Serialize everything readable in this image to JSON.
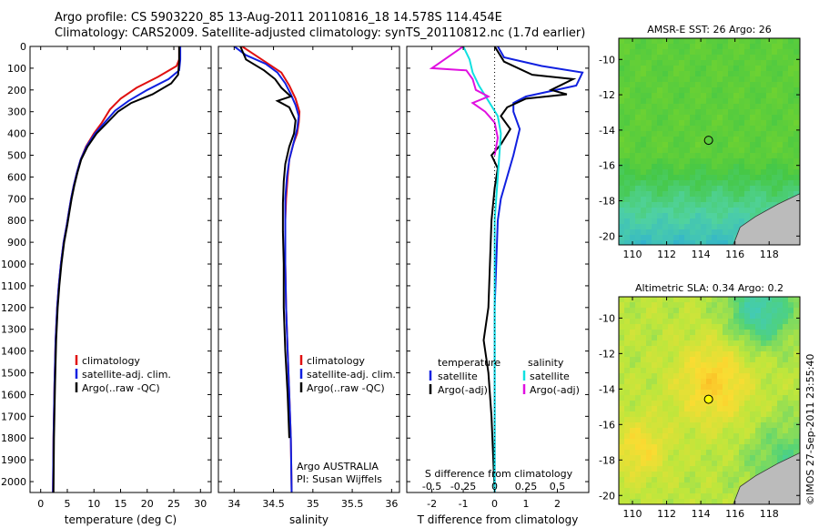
{
  "header": {
    "line1": "Argo profile: CS 5903220_85 13-Aug-2011 20110816_18 14.578S 114.454E",
    "line2": "Climatology: CARS2009. Satellite-adjusted climatology: synTS_20110812.nc (1.7d earlier)"
  },
  "stamp": "©IMOS 27-Sep-2011 23:55:40",
  "colors": {
    "climatology": "#e01010",
    "satellite": "#1020e0",
    "argo": "#000000",
    "sal_satellite": "#10e0e0",
    "sal_argo": "#e010e0"
  },
  "depth_axis": {
    "ylim": [
      0,
      2050
    ],
    "ticks": [
      0,
      100,
      200,
      300,
      400,
      500,
      600,
      700,
      800,
      900,
      1000,
      1100,
      1200,
      1300,
      1400,
      1500,
      1600,
      1700,
      1800,
      1900,
      2000
    ]
  },
  "chart_data": [
    {
      "type": "line",
      "id": "temperature",
      "xlabel": "temperature (deg C)",
      "xlim": [
        -2,
        32
      ],
      "xticks": [
        0,
        5,
        10,
        15,
        20,
        25,
        30
      ],
      "legend": [
        "climatology",
        "satellite-adj. clim.",
        "Argo(..raw -QC)"
      ],
      "series": [
        {
          "name": "climatology",
          "key": "climatology",
          "x": [
            26.0,
            26.0,
            25.5,
            22,
            18,
            15,
            13,
            11.5,
            10,
            8.5,
            7.5,
            6.8,
            6.2,
            5.7,
            5.3,
            4.9,
            4.3,
            3.8,
            3.4,
            3.1,
            2.8,
            2.6,
            2.4,
            2.3
          ],
          "y": [
            0,
            60,
            90,
            140,
            190,
            240,
            290,
            350,
            400,
            460,
            520,
            580,
            640,
            700,
            760,
            820,
            900,
            1000,
            1100,
            1200,
            1350,
            1550,
            1800,
            2050
          ]
        },
        {
          "name": "satellite-adj. clim.",
          "key": "satellite",
          "x": [
            26.2,
            26.2,
            26,
            24,
            20,
            16.5,
            14,
            12,
            10.2,
            8.6,
            7.5,
            6.8,
            6.2,
            5.7,
            5.3,
            4.9,
            4.3,
            3.8,
            3.4,
            3.1,
            2.8,
            2.6,
            2.4,
            2.3
          ],
          "y": [
            0,
            60,
            110,
            150,
            200,
            250,
            295,
            350,
            400,
            460,
            520,
            580,
            640,
            700,
            760,
            820,
            900,
            1000,
            1100,
            1200,
            1350,
            1550,
            1800,
            2050
          ]
        },
        {
          "name": "Argo(..raw -QC)",
          "key": "argo",
          "x": [
            26.0,
            26.0,
            25.8,
            24.5,
            21,
            17,
            14.5,
            12.5,
            10.5,
            8.8,
            7.6,
            6.9,
            6.3,
            5.8,
            5.4,
            5.0,
            4.4,
            3.9,
            3.5,
            3.2,
            2.9,
            2.7,
            2.5,
            2.4
          ],
          "y": [
            0,
            70,
            130,
            170,
            220,
            260,
            300,
            350,
            400,
            460,
            520,
            580,
            640,
            700,
            760,
            820,
            900,
            1000,
            1100,
            1200,
            1350,
            1550,
            1800,
            2050
          ]
        }
      ]
    },
    {
      "type": "line",
      "id": "salinity",
      "xlabel": "salinity",
      "xlim": [
        33.8,
        36.1
      ],
      "xticks": [
        34,
        34.5,
        35,
        35.5,
        36
      ],
      "legend": [
        "climatology",
        "satellite-adj. clim.",
        "Argo(..raw -QC)"
      ],
      "annotation": [
        "Argo AUSTRALIA",
        "PI: Susan Wijffels"
      ],
      "series": [
        {
          "name": "climatology",
          "key": "climatology",
          "x": [
            34.1,
            34.35,
            34.6,
            34.7,
            34.78,
            34.83,
            34.82,
            34.8,
            34.75,
            34.7,
            34.68,
            34.66,
            34.65,
            34.65,
            34.66,
            34.68,
            34.7,
            34.72,
            34.73
          ],
          "y": [
            0,
            60,
            120,
            180,
            240,
            300,
            350,
            400,
            450,
            520,
            600,
            700,
            800,
            1000,
            1200,
            1400,
            1600,
            1800,
            2050
          ]
        },
        {
          "name": "satellite-adj. clim.",
          "key": "satellite",
          "x": [
            34.0,
            34.15,
            34.4,
            34.55,
            34.65,
            34.72,
            34.78,
            34.82,
            34.8,
            34.75,
            34.7,
            34.67,
            34.65,
            34.65,
            34.65,
            34.66,
            34.68,
            34.7,
            34.72,
            34.73
          ],
          "y": [
            0,
            40,
            80,
            120,
            170,
            220,
            270,
            320,
            380,
            450,
            520,
            600,
            700,
            800,
            1000,
            1200,
            1400,
            1600,
            1800,
            2050
          ]
        },
        {
          "name": "Argo(..raw -QC)",
          "key": "argo",
          "x": [
            34.08,
            34.15,
            34.38,
            34.52,
            34.6,
            34.72,
            34.55,
            34.7,
            34.78,
            34.76,
            34.7,
            34.65,
            34.63,
            34.62,
            34.62,
            34.63,
            34.63,
            34.65,
            34.68,
            34.7
          ],
          "y": [
            0,
            60,
            110,
            150,
            190,
            230,
            250,
            280,
            340,
            400,
            460,
            540,
            620,
            720,
            850,
            1000,
            1200,
            1400,
            1600,
            1800
          ]
        }
      ]
    },
    {
      "type": "line",
      "id": "difference",
      "xlabel": "T difference from climatology",
      "x2label": "S difference from climatology",
      "xlim": [
        -2.8,
        3.0
      ],
      "xticks": [
        -2,
        -1,
        0,
        1,
        2
      ],
      "xtick_labels": [
        "-2",
        "-1",
        "0",
        "1",
        "2"
      ],
      "x2ticks": [
        -2,
        -1,
        0,
        1,
        2
      ],
      "x2tick_labels": [
        "-0.5",
        "-0.25",
        "0",
        "0.25",
        "0.5"
      ],
      "legend": {
        "temperature_heading": "temperature",
        "salinity_heading": "salinity",
        "temperature_entries": [
          "satellite",
          "Argo(-adj)"
        ],
        "salinity_entries": [
          "satellite",
          "Argo(-adj)"
        ]
      },
      "series": [
        {
          "name": "T satellite",
          "key": "satellite",
          "x": [
            0.1,
            0.3,
            1.5,
            2.8,
            2.6,
            1.0,
            0.6,
            0.6,
            0.8,
            0.6,
            0.4,
            0.2,
            0.1,
            0.05,
            0.0,
            0.0,
            0.0,
            0.0
          ],
          "y": [
            0,
            50,
            90,
            120,
            180,
            230,
            260,
            300,
            380,
            500,
            600,
            700,
            800,
            1000,
            1200,
            1500,
            1800,
            2050
          ]
        },
        {
          "name": "T Argo(-adj)",
          "key": "argo",
          "x": [
            0.0,
            0.3,
            1.2,
            2.5,
            1.8,
            2.3,
            1.0,
            0.4,
            0.2,
            0.5,
            0.2,
            -0.1,
            0.1,
            0.0,
            -0.1,
            -0.2,
            -0.35,
            -0.2,
            -0.1,
            0.0
          ],
          "y": [
            0,
            70,
            130,
            150,
            200,
            220,
            240,
            280,
            320,
            380,
            450,
            500,
            560,
            650,
            800,
            1200,
            1350,
            1500,
            1700,
            2050
          ]
        },
        {
          "name": "S satellite",
          "key": "sal_satellite",
          "x": [
            -1.0,
            -0.8,
            -0.7,
            -0.5,
            -0.2,
            0.1,
            0.2,
            0.15,
            0.1,
            0.0,
            0.0,
            0.0,
            0.0
          ],
          "y": [
            0,
            60,
            120,
            180,
            250,
            320,
            400,
            500,
            600,
            800,
            1200,
            1600,
            2050
          ]
        },
        {
          "name": "S Argo(-adj)",
          "key": "sal_argo",
          "x": [
            -1.0,
            -2.0,
            -0.9,
            -0.7,
            -0.6,
            -0.2,
            -0.7,
            -0.3,
            0.0,
            0.1,
            0.0
          ],
          "y": [
            0,
            100,
            110,
            150,
            200,
            230,
            260,
            300,
            350,
            420,
            500
          ]
        }
      ]
    },
    {
      "type": "heatmap",
      "id": "sst_map",
      "title": "AMSR-E SST: 26 Argo: 26",
      "xlim": [
        109.2,
        119.8
      ],
      "ylim": [
        -20.5,
        -8.8
      ],
      "xticks": [
        110,
        112,
        114,
        116,
        118
      ],
      "yticks": [
        -10,
        -12,
        -14,
        -16,
        -18,
        -20
      ],
      "marker": {
        "lon": 114.454,
        "lat": -14.578
      }
    },
    {
      "type": "heatmap",
      "id": "sla_map",
      "title": "Altimetric SLA: 0.34 Argo: 0.2",
      "xlim": [
        109.2,
        119.8
      ],
      "ylim": [
        -20.5,
        -8.8
      ],
      "xticks": [
        110,
        112,
        114,
        116,
        118
      ],
      "yticks": [
        -10,
        -12,
        -14,
        -16,
        -18,
        -20
      ],
      "marker": {
        "lon": 114.454,
        "lat": -14.578
      }
    }
  ]
}
